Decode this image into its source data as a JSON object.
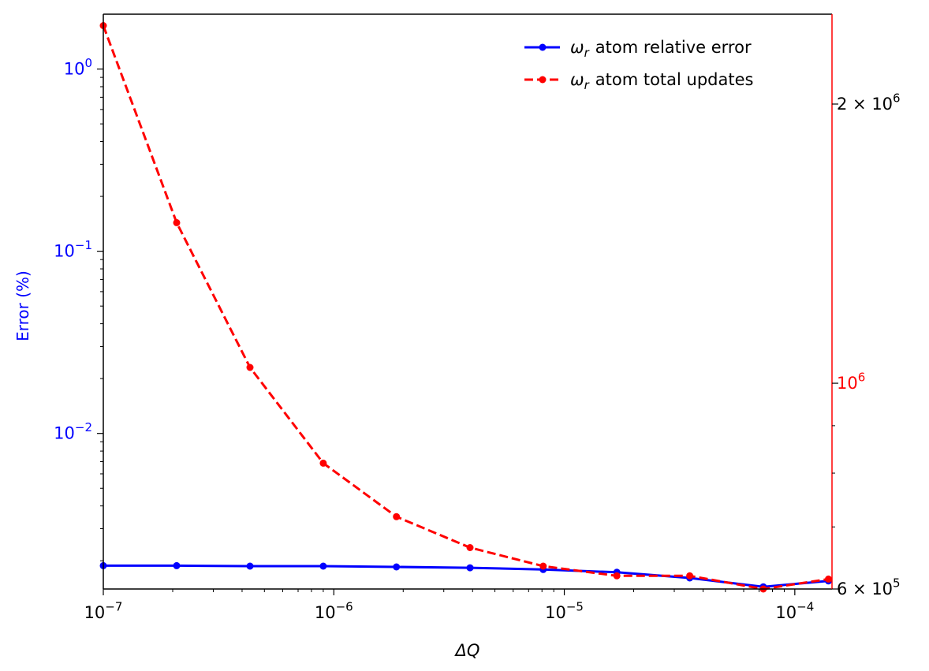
{
  "chart_data": {
    "type": "line",
    "xlabel": "ΔQ",
    "ylabel_left": "Error (%)",
    "ylabel_right": "",
    "x_scale": "log",
    "xlim": [
      1e-07,
      0.000145
    ],
    "ylim_left": [
      0.0014,
      2.0
    ],
    "ylim_right": [
      600000,
      2500000
    ],
    "y_scale_left": "log",
    "y_scale_right": "log",
    "grid": false,
    "legend_position": "top-right",
    "x_ticks": [
      {
        "value": 1e-07,
        "base": "10",
        "exp": "−7"
      },
      {
        "value": 1e-06,
        "base": "10",
        "exp": "−6"
      },
      {
        "value": 1e-05,
        "base": "10",
        "exp": "−5"
      },
      {
        "value": 0.0001,
        "base": "10",
        "exp": "−4"
      }
    ],
    "y_ticks_left": [
      {
        "value": 1,
        "base": "10",
        "exp": "0"
      },
      {
        "value": 0.1,
        "base": "10",
        "exp": "−1"
      },
      {
        "value": 0.01,
        "base": "10",
        "exp": "−2"
      }
    ],
    "y_ticks_right": [
      {
        "value": 2000000,
        "mantissa": "2 × ",
        "base": "10",
        "exp": "6",
        "color": "#000000"
      },
      {
        "value": 1000000,
        "mantissa": "",
        "base": "10",
        "exp": "6",
        "color": "#ff0000"
      },
      {
        "value": 600000,
        "mantissa": "6 × ",
        "base": "10",
        "exp": "5",
        "color": "#000000"
      }
    ],
    "x": [
      1e-07,
      2.08e-07,
      4.33e-07,
      9e-07,
      1.87e-06,
      3.9e-06,
      8.1e-06,
      1.69e-05,
      3.5e-05,
      7.3e-05,
      0.00014
    ],
    "series": [
      {
        "name": "ω_r atom relative error",
        "axis": "left",
        "color": "#0000ff",
        "linestyle": "solid",
        "values": [
          0.00188,
          0.00188,
          0.00187,
          0.00187,
          0.00185,
          0.00183,
          0.00179,
          0.00173,
          0.00161,
          0.00144,
          0.00155
        ]
      },
      {
        "name": "ω_r atom total updates",
        "axis": "right",
        "color": "#ff0000",
        "linestyle": "dashed",
        "values": [
          2430000,
          1490000,
          1040000,
          820000,
          718000,
          665000,
          635000,
          620000,
          620000,
          600000,
          615000
        ]
      }
    ],
    "legend": [
      {
        "sym": "ω",
        "sub": "r",
        "text": "atom relative error"
      },
      {
        "sym": "ω",
        "sub": "r",
        "text": "atom total updates"
      }
    ]
  }
}
